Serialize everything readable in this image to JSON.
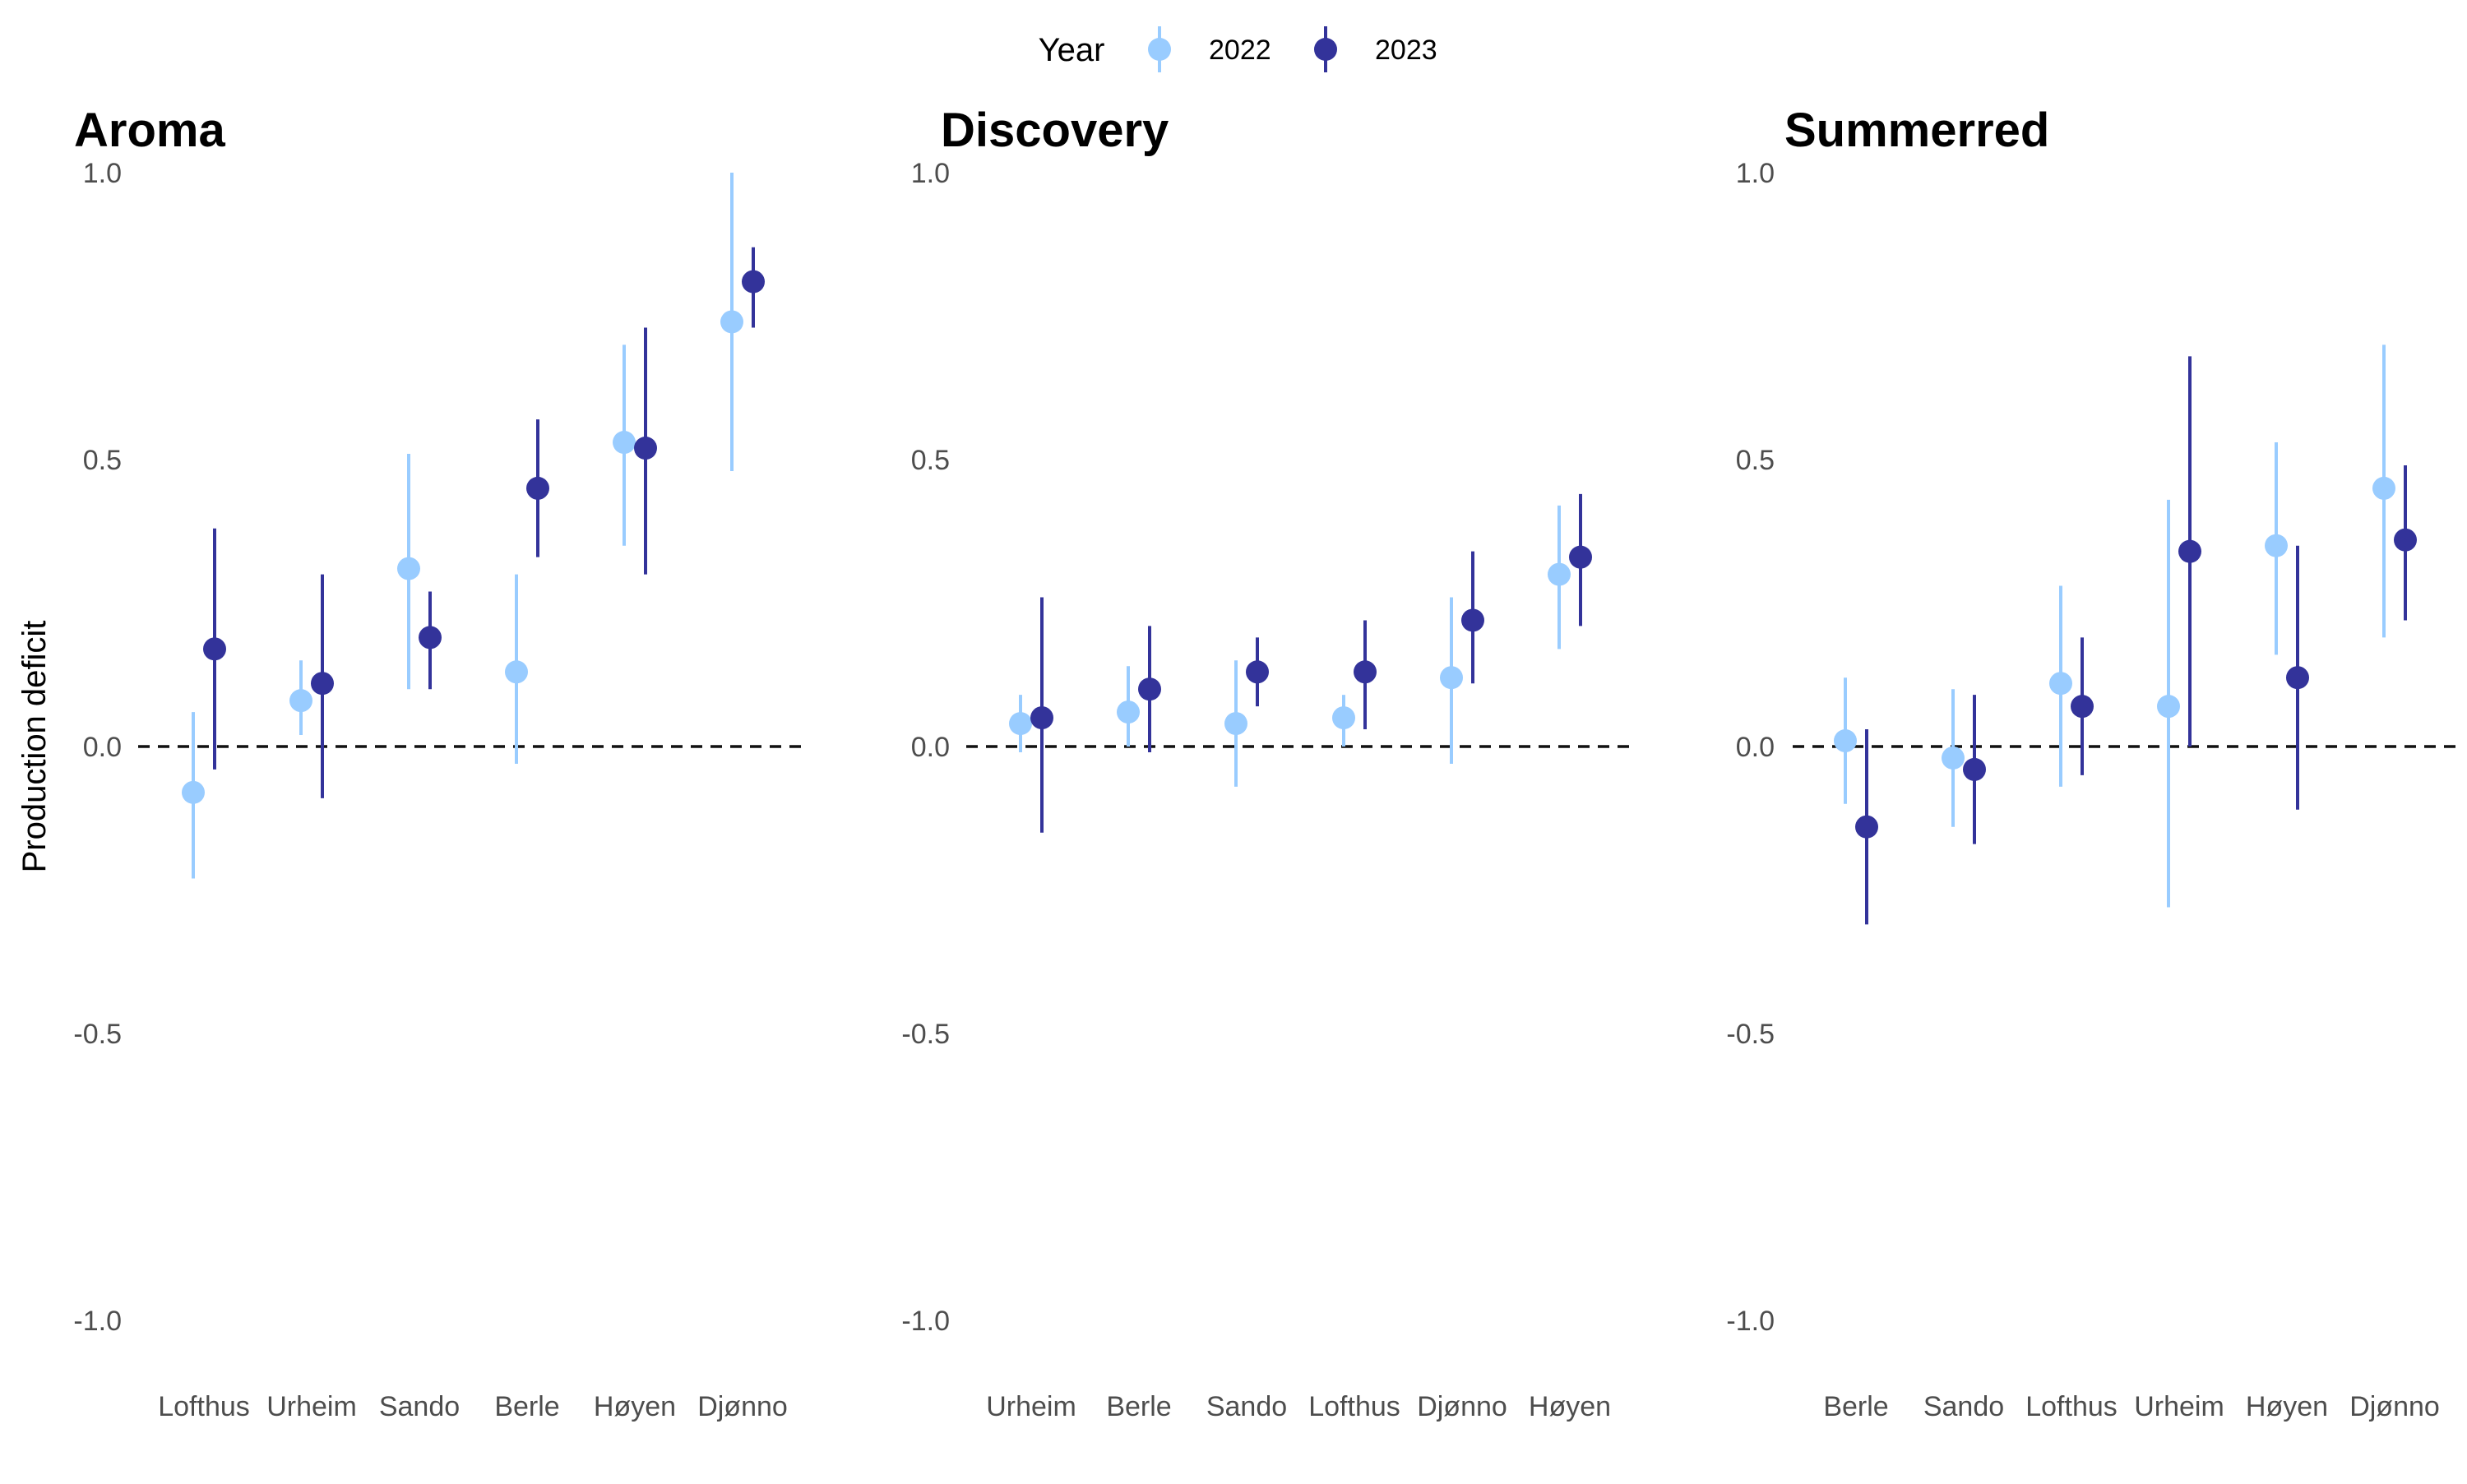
{
  "chart_data": {
    "type": "pointrange",
    "ylabel": "Production deficit",
    "ylim": [
      -1.0,
      1.0
    ],
    "yticks": [
      "1.0",
      "0.5",
      "0.0",
      "-0.5",
      "-1.0"
    ],
    "ytick_values": [
      1.0,
      0.5,
      0.0,
      -0.5,
      -1.0
    ],
    "reference_line": 0,
    "grid": false,
    "legend": {
      "title": "Year",
      "placement": "top-center",
      "entries": [
        {
          "name": "2022",
          "color": "#99ccff"
        },
        {
          "name": "2023",
          "color": "#33339a"
        }
      ]
    },
    "panels": [
      {
        "title": "Aroma",
        "categories": [
          "Lofthus",
          "Urheim",
          "Sando",
          "Berle",
          "Høyen",
          "Djønno"
        ],
        "series": [
          {
            "name": "2022",
            "color": "#99ccff",
            "values": [
              -0.08,
              0.08,
              0.31,
              0.13,
              0.53,
              0.74
            ],
            "lower": [
              -0.23,
              0.02,
              0.1,
              -0.03,
              0.35,
              0.48
            ],
            "upper": [
              0.06,
              0.15,
              0.51,
              0.3,
              0.7,
              1.0
            ]
          },
          {
            "name": "2023",
            "color": "#33339a",
            "values": [
              0.17,
              0.11,
              0.19,
              0.45,
              0.52,
              0.81
            ],
            "lower": [
              -0.04,
              -0.09,
              0.1,
              0.33,
              0.3,
              0.73
            ],
            "upper": [
              0.38,
              0.3,
              0.27,
              0.57,
              0.73,
              0.87
            ]
          }
        ]
      },
      {
        "title": "Discovery",
        "categories": [
          "Urheim",
          "Berle",
          "Sando",
          "Lofthus",
          "Djønno",
          "Høyen"
        ],
        "series": [
          {
            "name": "2022",
            "color": "#99ccff",
            "values": [
              0.04,
              0.06,
              0.04,
              0.05,
              0.12,
              0.3
            ],
            "lower": [
              -0.01,
              0.0,
              -0.07,
              0.0,
              -0.03,
              0.17
            ],
            "upper": [
              0.09,
              0.14,
              0.15,
              0.09,
              0.26,
              0.42
            ]
          },
          {
            "name": "2023",
            "color": "#33339a",
            "values": [
              0.05,
              0.1,
              0.13,
              0.13,
              0.22,
              0.33
            ],
            "lower": [
              -0.15,
              -0.01,
              0.07,
              0.03,
              0.11,
              0.21
            ],
            "upper": [
              0.26,
              0.21,
              0.19,
              0.22,
              0.34,
              0.44
            ]
          }
        ]
      },
      {
        "title": "Summerred",
        "categories": [
          "Berle",
          "Sando",
          "Lofthus",
          "Urheim",
          "Høyen",
          "Djønno"
        ],
        "series": [
          {
            "name": "2022",
            "color": "#99ccff",
            "values": [
              0.01,
              -0.02,
              0.11,
              0.07,
              0.35,
              0.45
            ],
            "lower": [
              -0.1,
              -0.14,
              -0.07,
              -0.28,
              0.16,
              0.19
            ],
            "upper": [
              0.12,
              0.1,
              0.28,
              0.43,
              0.53,
              0.7
            ]
          },
          {
            "name": "2023",
            "color": "#33339a",
            "values": [
              -0.14,
              -0.04,
              0.07,
              0.34,
              0.12,
              0.36
            ],
            "lower": [
              -0.31,
              -0.17,
              -0.05,
              0.0,
              -0.11,
              0.22
            ],
            "upper": [
              0.03,
              0.09,
              0.19,
              0.68,
              0.35,
              0.49
            ]
          }
        ]
      }
    ]
  }
}
